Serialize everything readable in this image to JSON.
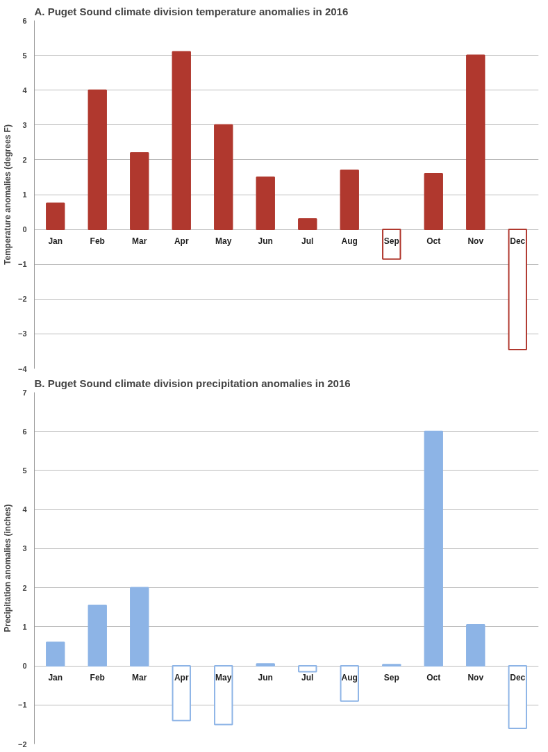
{
  "chart_data": [
    {
      "type": "bar",
      "title": "A. Puget Sound climate division temperature anomalies in 2016",
      "ylabel": "Temperature anomalies (degrees F)",
      "categories": [
        "Jan",
        "Feb",
        "Mar",
        "Apr",
        "May",
        "Jun",
        "Jul",
        "Aug",
        "Sep",
        "Oct",
        "Nov",
        "Dec"
      ],
      "series": [
        {
          "color": "#b0382e",
          "values": [
            0.75,
            4.0,
            2.2,
            5.1,
            3.0,
            1.5,
            0.3,
            1.7,
            -0.85,
            1.6,
            5.0,
            -3.45
          ]
        }
      ],
      "colors": [
        "#b0382e",
        "#b0382e",
        "#b0382e",
        "#b0382e",
        "#b0382e",
        "#b0382e",
        "#b0382e",
        "#b0382e",
        "#ffffff",
        "#b0382e",
        "#b0382e",
        "#ffffff"
      ],
      "ylim": [
        -4,
        6
      ],
      "yticks": [
        -4,
        -3,
        -2,
        -1,
        0,
        1,
        2,
        3,
        4,
        5,
        6
      ],
      "grid": "y"
    },
    {
      "type": "bar",
      "title": "B. Puget Sound climate division precipitation anomalies in 2016",
      "ylabel": "Precipitation anomalies (inches)",
      "categories": [
        "Jan",
        "Feb",
        "Mar",
        "Apr",
        "May",
        "Jun",
        "Jul",
        "Aug",
        "Sep",
        "Oct",
        "Nov",
        "Dec"
      ],
      "series": [
        {
          "color": "#8db4e6",
          "values": [
            0.6,
            1.55,
            2.0,
            -1.4,
            -1.5,
            0.05,
            -0.15,
            -0.9,
            0.03,
            6.0,
            1.05,
            -1.6
          ]
        }
      ],
      "colors": [
        "#8db4e6",
        "#8db4e6",
        "#8db4e6",
        "#ffffff",
        "#ffffff",
        "#8db4e6",
        "#ffffff",
        "#ffffff",
        "#8db4e6",
        "#8db4e6",
        "#8db4e6",
        "#ffffff"
      ],
      "ylim": [
        -2,
        7
      ],
      "yticks": [
        -2,
        -1,
        0,
        1,
        2,
        3,
        4,
        5,
        6,
        7
      ],
      "grid": "y"
    }
  ]
}
